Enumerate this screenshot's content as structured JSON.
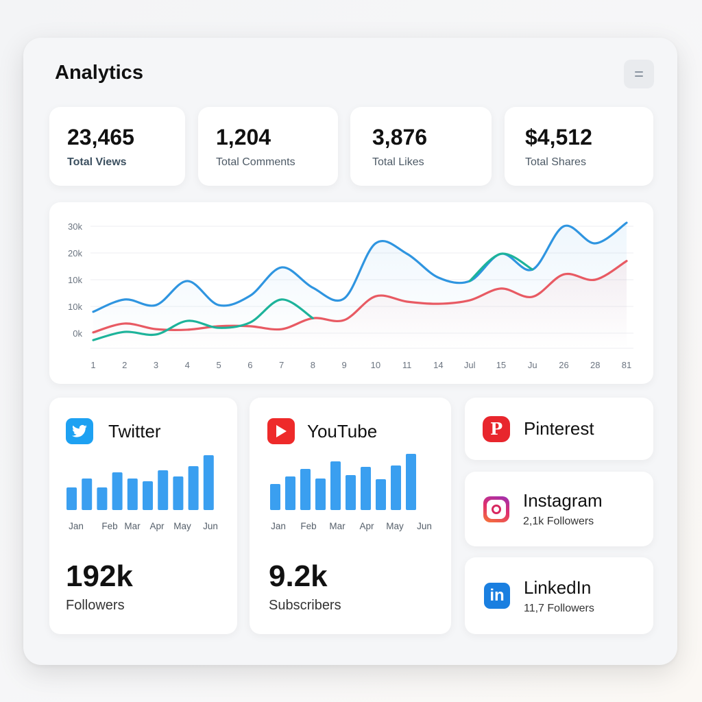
{
  "header": {
    "title": "Analytics",
    "menu_icon": "hamburger-icon"
  },
  "stats": [
    {
      "value": "23,465",
      "label": "Total Views"
    },
    {
      "value": "1,204",
      "label": "Total Comments"
    },
    {
      "value": "3,876",
      "label": "Total Likes"
    },
    {
      "value": "$4,512",
      "label": "Total Shares"
    }
  ],
  "chart_data": {
    "type": "line",
    "title": "",
    "x": [
      "1",
      "2",
      "3",
      "4",
      "5",
      "6",
      "7",
      "8",
      "9",
      "10",
      "11",
      "14",
      "Jul",
      "15",
      "Ju",
      "26",
      "28",
      "81"
    ],
    "y_tick_labels": [
      "0k",
      "10k",
      "10k",
      "20k",
      "30k"
    ],
    "ylim": [
      -5,
      42
    ],
    "grid": true,
    "series": [
      {
        "color": "#2f95e0",
        "values": [
          8,
          12.6,
          10.5,
          19.5,
          10.5,
          14,
          24.6,
          17,
          13,
          33.6,
          29.7,
          20.8,
          19.5,
          29.7,
          23.8,
          40,
          33.6,
          41.3
        ]
      },
      {
        "color": "#1db39a",
        "values": [
          -2.6,
          0.5,
          -0.5,
          4.6,
          2,
          4,
          12.6,
          5.6,
          null,
          null,
          null,
          null,
          19.5,
          29.7,
          23.8,
          null,
          null,
          null
        ]
      },
      {
        "color": "#e85a63",
        "values": [
          0.3,
          3.6,
          1.5,
          1.3,
          2.6,
          2.6,
          1.5,
          5.6,
          4.9,
          13.8,
          11.8,
          11,
          12.3,
          16.7,
          13.6,
          22,
          20,
          27
        ]
      }
    ]
  },
  "twitter": {
    "name": "Twitter",
    "value": "192k",
    "label": "Followers",
    "color": "#1da1f2",
    "bars": [
      33,
      46,
      33,
      55,
      46,
      42,
      58,
      49,
      64,
      80
    ],
    "bar_color": "#3a9ff0",
    "months": [
      "Jan",
      "Feb",
      "Mar",
      "Apr",
      "May",
      "Jun"
    ]
  },
  "youtube": {
    "name": "YouTube",
    "value": "9.2k",
    "label": "Subscribers",
    "color": "#ee2a2a",
    "bars": [
      38,
      49,
      60,
      46,
      71,
      51,
      63,
      45,
      65,
      82
    ],
    "bar_color": "#3a9ff0",
    "months": [
      "Jan",
      "Feb",
      "Mar",
      "Apr",
      "May",
      "Jun"
    ]
  },
  "pinterest": {
    "name": "Pinterest"
  },
  "instagram": {
    "name": "Instagram",
    "count": "2,1k",
    "label": "Followers"
  },
  "linkedin": {
    "name": "LinkedIn",
    "count": "11,7",
    "label": "Followers"
  }
}
